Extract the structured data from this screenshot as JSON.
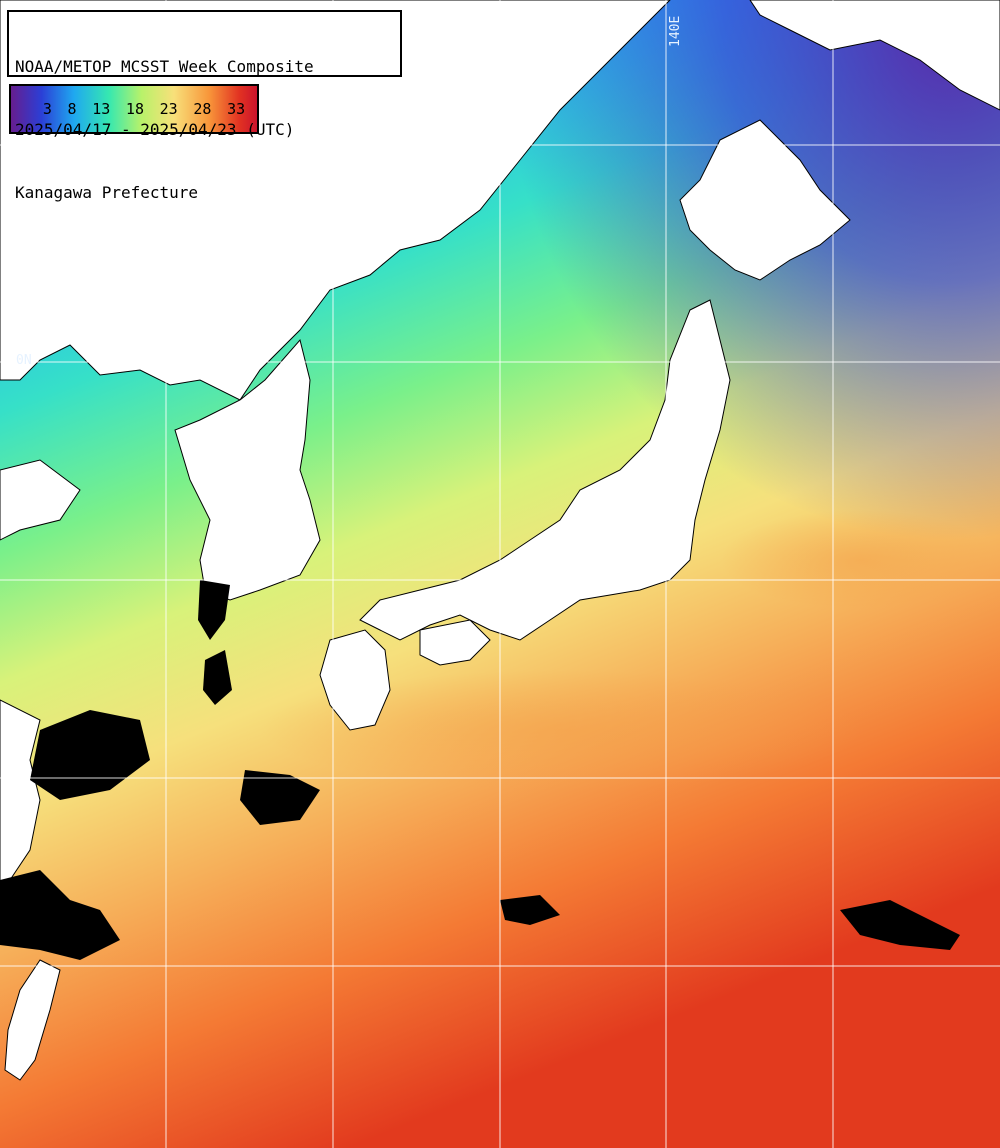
{
  "map": {
    "title_lines": [
      "NOAA/METOP MCSST Week Composite",
      "2025/04/17 - 2025/04/23 (UTC)",
      "Kanagawa Prefecture"
    ],
    "legend": {
      "ticks": [
        "3",
        "8",
        "13",
        "18",
        "23",
        "28",
        "33"
      ],
      "colors": [
        "#6a1b8a",
        "#2b3fd6",
        "#1fa8f0",
        "#36e8b0",
        "#b8f26a",
        "#f8e07a",
        "#f8963a",
        "#e23322",
        "#c8102e"
      ]
    },
    "grid_labels": {
      "longitude": "140E",
      "latitude": "0N"
    },
    "colors": {
      "land": "#ffffff",
      "cloud_gap": "#000000",
      "grid": "#ffffff"
    }
  }
}
